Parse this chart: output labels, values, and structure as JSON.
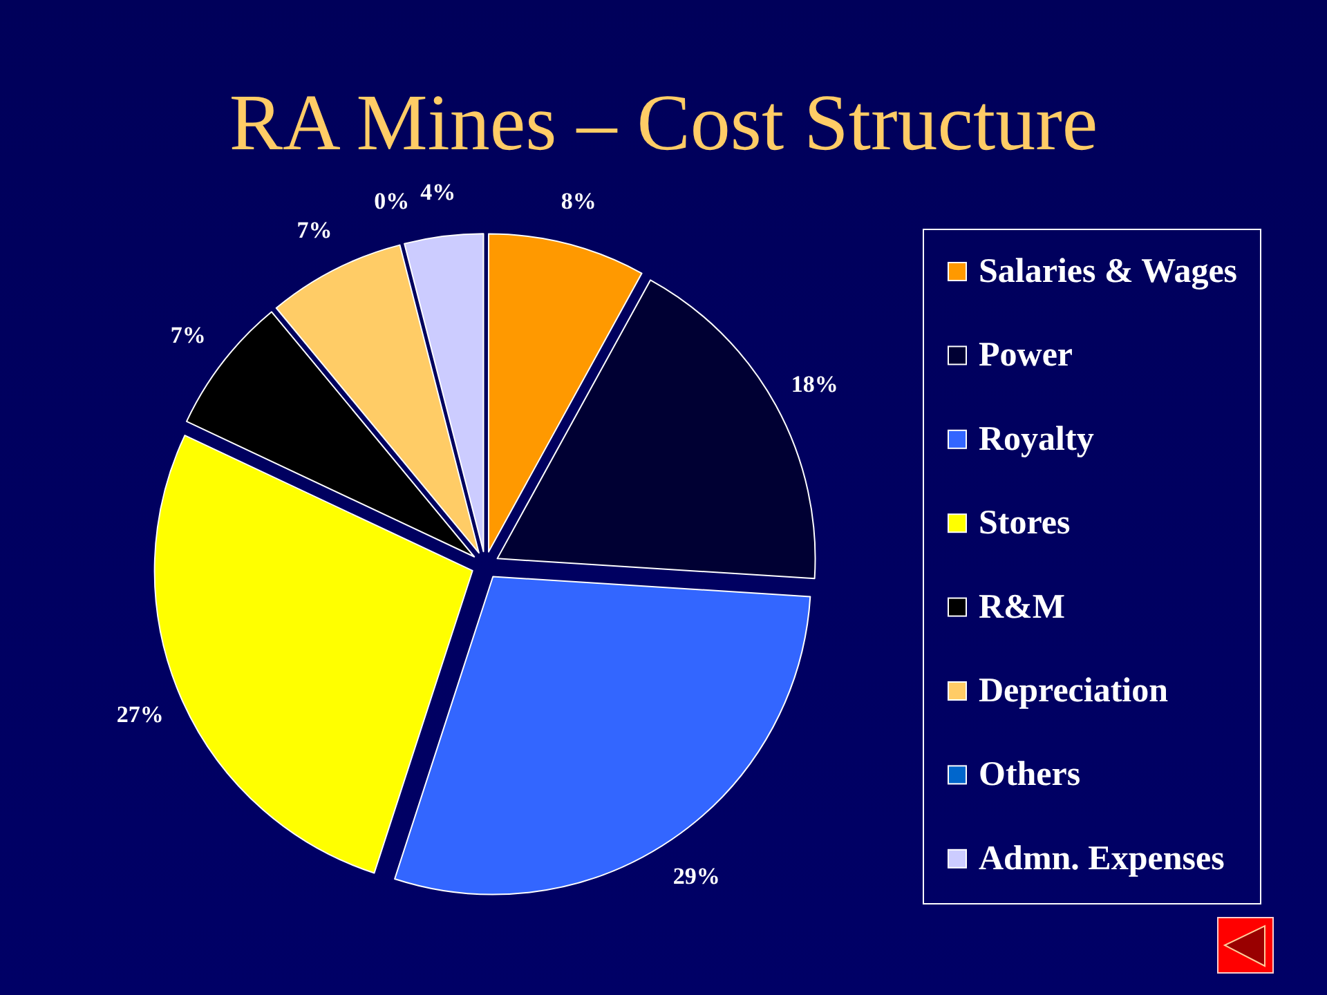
{
  "chart_data": {
    "type": "pie",
    "title": "RA Mines – Cost Structure",
    "categories": [
      "Salaries & Wages",
      "Power",
      "Royalty",
      "Stores",
      "R&M",
      "Depreciation",
      "Others",
      "Admn. Expenses"
    ],
    "values": [
      8,
      18,
      29,
      27,
      7,
      7,
      0,
      4
    ],
    "colors": [
      "#ff9900",
      "#000033",
      "#3366ff",
      "#ffff00",
      "#000000",
      "#ffcc66",
      "#0066cc",
      "#ccccff"
    ],
    "value_labels": [
      "8%",
      "18%",
      "29%",
      "27%",
      "7%",
      "7%",
      "0%",
      "4%"
    ],
    "legend": "right"
  }
}
